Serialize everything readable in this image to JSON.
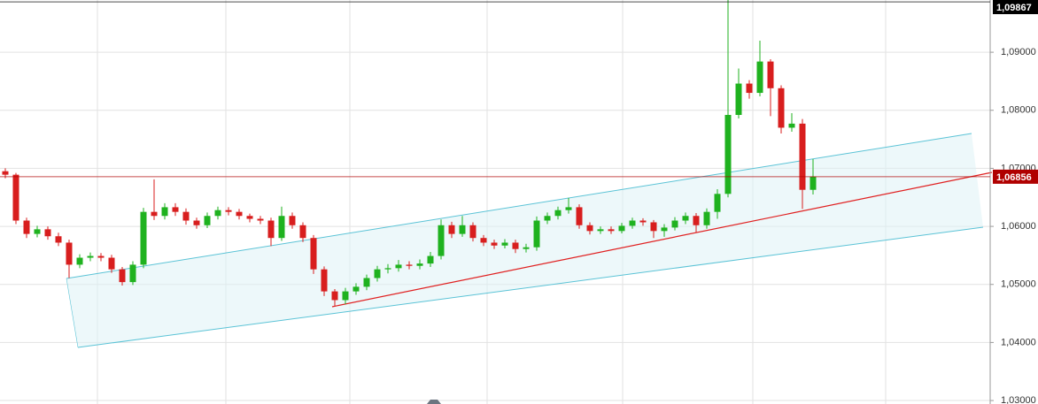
{
  "chart_data": {
    "type": "candlestick",
    "open": [
      1.0695,
      1.0689,
      1.061,
      1.0587,
      1.0595,
      1.0583,
      1.0572,
      1.0534,
      1.0546,
      1.0549,
      1.0546,
      1.0526,
      1.0504,
      1.0534,
      1.0625,
      1.0618,
      1.0633,
      1.0625,
      1.061,
      1.0602,
      1.0618,
      1.0628,
      1.0625,
      1.0618,
      1.0613,
      1.061,
      1.058,
      1.0618,
      1.0602,
      1.058,
      1.0526,
      1.0488,
      1.0473,
      1.0488,
      1.0496,
      1.0511,
      1.0526,
      1.0528,
      1.0534,
      1.0532,
      1.0536,
      1.0549,
      1.0602,
      1.0587,
      1.0602,
      1.058,
      1.0572,
      1.0567,
      1.0572,
      1.0561,
      1.0564,
      1.061,
      1.0618,
      1.0628,
      1.0633,
      1.0602,
      1.0592,
      1.0595,
      1.0592,
      1.0601,
      1.061,
      1.0607,
      1.0592,
      1.0598,
      1.061,
      1.0618,
      1.0602,
      1.0625,
      1.0656,
      1.0792,
      1.0846,
      1.083,
      1.0884,
      1.0838,
      1.077,
      1.0777,
      1.0663
    ],
    "high": [
      1.07,
      1.0692,
      1.0615,
      1.0601,
      1.06,
      1.0589,
      1.0577,
      1.0552,
      1.0555,
      1.0554,
      1.0551,
      1.053,
      1.054,
      1.0632,
      1.0681,
      1.064,
      1.064,
      1.0631,
      1.0615,
      1.0624,
      1.0634,
      1.0633,
      1.063,
      1.0622,
      1.0618,
      1.0615,
      1.0634,
      1.0624,
      1.0607,
      1.0585,
      1.0531,
      1.0492,
      1.0494,
      1.0502,
      1.0517,
      1.0532,
      1.0535,
      1.0542,
      1.054,
      1.0543,
      1.0556,
      1.0612,
      1.0608,
      1.0618,
      1.0607,
      1.0585,
      1.0577,
      1.0578,
      1.0577,
      1.057,
      1.0617,
      1.0624,
      1.0634,
      1.0649,
      1.0638,
      1.0607,
      1.06,
      1.06,
      1.0606,
      1.0615,
      1.0614,
      1.0611,
      1.0604,
      1.0616,
      1.0624,
      1.0623,
      1.0631,
      1.0664,
      1.099,
      1.0872,
      1.0852,
      1.092,
      1.0888,
      1.0843,
      1.0795,
      1.0785,
      1.0716
    ],
    "low": [
      1.0683,
      1.0604,
      1.058,
      1.0581,
      1.0577,
      1.0566,
      1.0511,
      1.0528,
      1.054,
      1.054,
      1.052,
      1.0498,
      1.0499,
      1.0528,
      1.0611,
      1.0612,
      1.0618,
      1.0603,
      1.0596,
      1.0597,
      1.0612,
      1.0619,
      1.0612,
      1.0607,
      1.0604,
      1.0566,
      1.0575,
      1.0596,
      1.0573,
      1.0518,
      1.048,
      1.0463,
      1.0466,
      1.0482,
      1.049,
      1.0505,
      1.0519,
      1.0522,
      1.0526,
      1.0526,
      1.053,
      1.0543,
      1.058,
      1.0582,
      1.0574,
      1.0566,
      1.0561,
      1.0562,
      1.0554,
      1.0555,
      1.0558,
      1.0604,
      1.0612,
      1.0622,
      1.0596,
      1.0586,
      1.0587,
      1.0587,
      1.0588,
      1.0596,
      1.0601,
      1.058,
      1.0582,
      1.0593,
      1.0604,
      1.059,
      1.0596,
      1.0613,
      1.065,
      1.0786,
      1.082,
      1.0824,
      1.079,
      1.076,
      1.0763,
      1.063,
      1.0655
    ],
    "close": [
      1.0689,
      1.061,
      1.0587,
      1.0595,
      1.0583,
      1.0572,
      1.0534,
      1.0546,
      1.0549,
      1.0546,
      1.0526,
      1.0504,
      1.0534,
      1.0625,
      1.0618,
      1.0633,
      1.0625,
      1.061,
      1.0602,
      1.0618,
      1.0628,
      1.0625,
      1.0618,
      1.0613,
      1.061,
      1.058,
      1.0618,
      1.0602,
      1.058,
      1.0526,
      1.0488,
      1.0473,
      1.0488,
      1.0496,
      1.0511,
      1.0526,
      1.0528,
      1.0534,
      1.0532,
      1.0536,
      1.0549,
      1.0602,
      1.0587,
      1.0602,
      1.058,
      1.0572,
      1.0567,
      1.0572,
      1.0561,
      1.0564,
      1.061,
      1.0618,
      1.0628,
      1.0633,
      1.0602,
      1.0592,
      1.0595,
      1.0592,
      1.0601,
      1.061,
      1.0607,
      1.0592,
      1.0598,
      1.061,
      1.0618,
      1.0602,
      1.0625,
      1.0656,
      1.0792,
      1.0846,
      1.083,
      1.0884,
      1.0838,
      1.077,
      1.0777,
      1.0663,
      1.06856
    ],
    "up_color": "#1fb21f",
    "down_color": "#d81e1e",
    "ylim": [
      1.0294,
      1.099
    ],
    "yticks": [
      {
        "value": 1.03,
        "label": "1,03000"
      },
      {
        "value": 1.04,
        "label": "1,04000"
      },
      {
        "value": 1.05,
        "label": "1,05000"
      },
      {
        "value": 1.06,
        "label": "1,06000"
      },
      {
        "value": 1.07,
        "label": "1,07000"
      },
      {
        "value": 1.08,
        "label": "1,08000"
      },
      {
        "value": 1.09,
        "label": "1,09000"
      }
    ],
    "grid": true,
    "price_markers": [
      {
        "value": 1.06856,
        "label": "1,06856",
        "color": "#b00000"
      },
      {
        "value": 1.09867,
        "label": "1,09867",
        "color": "#000000"
      }
    ]
  }
}
